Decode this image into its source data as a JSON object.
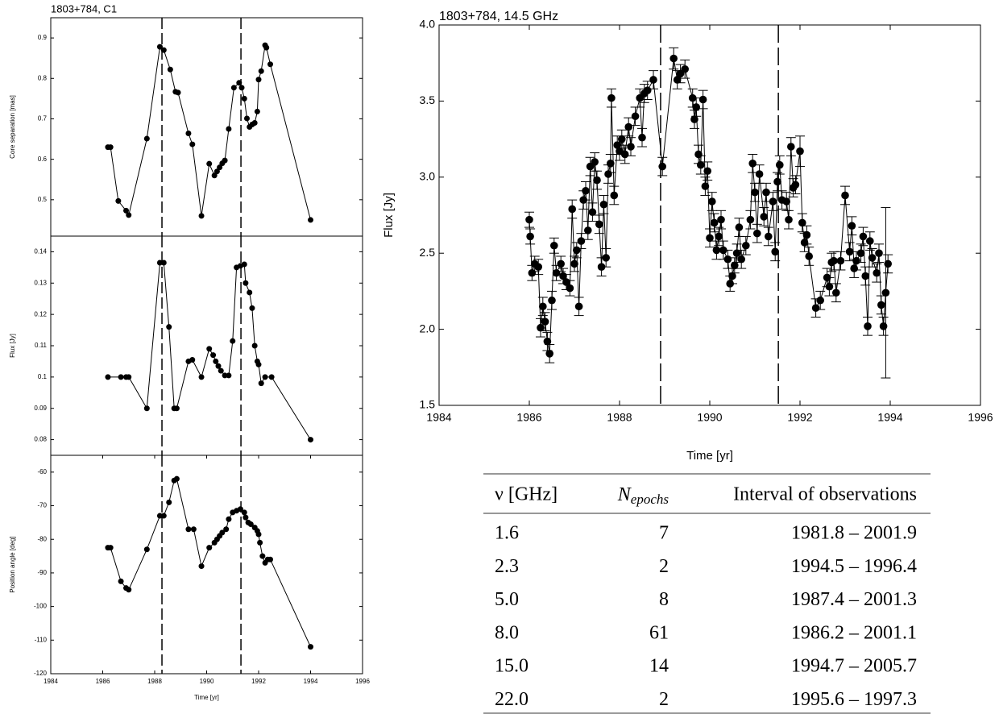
{
  "chart_data": [
    {
      "type": "line",
      "title": "1803+784, C1",
      "ylabel": "Core separation [mas]",
      "color": "#000000",
      "x": [
        1986.2,
        1986.3,
        1986.6,
        1986.9,
        1987.0,
        1987.7,
        1988.2,
        1988.35,
        1988.6,
        1988.8,
        1988.9,
        1989.3,
        1989.45,
        1989.8,
        1990.1,
        1990.3,
        1990.4,
        1990.5,
        1990.6,
        1990.7,
        1990.85,
        1991.05,
        1991.25,
        1991.35,
        1991.45,
        1991.55,
        1991.65,
        1991.75,
        1991.85,
        1991.95,
        1992.0,
        1992.1,
        1992.25,
        1992.3,
        1992.45,
        1994.0
      ],
      "values": [
        0.63,
        0.63,
        0.497,
        0.473,
        0.462,
        0.651,
        0.878,
        0.87,
        0.822,
        0.767,
        0.765,
        0.664,
        0.637,
        0.46,
        0.589,
        0.56,
        0.57,
        0.58,
        0.59,
        0.597,
        0.675,
        0.777,
        0.789,
        0.777,
        0.75,
        0.701,
        0.68,
        0.686,
        0.69,
        0.718,
        0.797,
        0.818,
        0.882,
        0.876,
        0.835,
        0.45
      ],
      "xlim": [
        1984,
        1996
      ],
      "ylim": [
        0.41,
        0.95
      ],
      "yticks": [
        0.5,
        0.6,
        0.7,
        0.8,
        0.9
      ],
      "vlines": [
        1988.28,
        1991.32
      ]
    },
    {
      "type": "line",
      "ylabel": "Flux [Jy]",
      "color": "#000000",
      "x": [
        1986.2,
        1986.7,
        1986.9,
        1987.0,
        1987.7,
        1988.2,
        1988.35,
        1988.55,
        1988.75,
        1988.85,
        1989.3,
        1989.45,
        1989.8,
        1990.1,
        1990.25,
        1990.35,
        1990.45,
        1990.55,
        1990.7,
        1990.85,
        1991.0,
        1991.15,
        1991.3,
        1991.45,
        1991.5,
        1991.65,
        1991.75,
        1991.85,
        1991.95,
        1992.0,
        1992.1,
        1992.25,
        1992.5,
        1994.0
      ],
      "values": [
        0.1,
        0.1,
        0.1,
        0.1,
        0.09,
        0.1365,
        0.1365,
        0.116,
        0.09,
        0.09,
        0.105,
        0.1055,
        0.1,
        0.109,
        0.107,
        0.105,
        0.1035,
        0.102,
        0.1005,
        0.1005,
        0.1115,
        0.135,
        0.1355,
        0.136,
        0.13,
        0.127,
        0.122,
        0.11,
        0.105,
        0.104,
        0.098,
        0.1,
        0.1,
        0.08
      ],
      "xlim": [
        1984,
        1996
      ],
      "ylim": [
        0.075,
        0.145
      ],
      "yticks": [
        0.08,
        0.09,
        0.1,
        0.11,
        0.12,
        0.13,
        0.14
      ],
      "vlines": [
        1988.28,
        1991.32
      ]
    },
    {
      "type": "line",
      "ylabel": "Position angle [deg]",
      "xlabel": "Time [yr]",
      "color": "#000000",
      "x": [
        1986.2,
        1986.3,
        1986.7,
        1986.9,
        1987.0,
        1987.7,
        1988.2,
        1988.35,
        1988.55,
        1988.75,
        1988.85,
        1989.3,
        1989.5,
        1989.8,
        1990.1,
        1990.3,
        1990.4,
        1990.5,
        1990.6,
        1990.75,
        1990.85,
        1991.0,
        1991.15,
        1991.3,
        1991.45,
        1991.5,
        1991.6,
        1991.7,
        1991.85,
        1991.95,
        1992.0,
        1992.05,
        1992.15,
        1992.25,
        1992.35,
        1992.45,
        1994.0
      ],
      "values": [
        -82.5,
        -82.5,
        -92.5,
        -94.5,
        -95,
        -83,
        -73,
        -73,
        -69,
        -62.5,
        -62,
        -77,
        -77,
        -88,
        -82.5,
        -81,
        -80,
        -79,
        -78,
        -77,
        -74,
        -72,
        -71.5,
        -71,
        -72,
        -73.5,
        -75,
        -75.5,
        -76.5,
        -77.5,
        -78.5,
        -81,
        -85,
        -87,
        -86,
        -86,
        -112
      ],
      "xlim": [
        1984,
        1996
      ],
      "ylim": [
        -120,
        -55
      ],
      "yticks": [
        -120,
        -110,
        -100,
        -90,
        -80,
        -70,
        -60
      ],
      "xticks": [
        1984,
        1986,
        1988,
        1990,
        1992,
        1994,
        1996
      ],
      "vlines": [
        1988.28,
        1991.32
      ]
    },
    {
      "type": "line",
      "title": "1803+784, 14.5 GHz",
      "ylabel": "Flux [Jy]",
      "xlabel": "Time [yr]",
      "color": "#000000",
      "x": [
        1986.0,
        1986.02,
        1986.06,
        1986.12,
        1986.2,
        1986.25,
        1986.3,
        1986.35,
        1986.4,
        1986.45,
        1986.5,
        1986.55,
        1986.6,
        1986.7,
        1986.75,
        1986.82,
        1986.9,
        1986.95,
        1987.0,
        1987.05,
        1987.1,
        1987.15,
        1987.2,
        1987.25,
        1987.3,
        1987.35,
        1987.4,
        1987.45,
        1987.5,
        1987.55,
        1987.6,
        1987.65,
        1987.7,
        1987.75,
        1987.8,
        1987.82,
        1987.88,
        1987.95,
        1988.0,
        1988.05,
        1988.12,
        1988.2,
        1988.25,
        1988.35,
        1988.45,
        1988.5,
        1988.55,
        1988.62,
        1988.75,
        1988.95,
        1989.2,
        1989.28,
        1989.35,
        1989.45,
        1989.62,
        1989.66,
        1989.7,
        1989.75,
        1989.8,
        1989.85,
        1989.9,
        1989.95,
        1990.0,
        1990.05,
        1990.1,
        1990.15,
        1990.2,
        1990.25,
        1990.3,
        1990.4,
        1990.45,
        1990.5,
        1990.55,
        1990.6,
        1990.65,
        1990.7,
        1990.8,
        1990.9,
        1990.95,
        1991.0,
        1991.05,
        1991.1,
        1991.2,
        1991.25,
        1991.3,
        1991.4,
        1991.45,
        1991.5,
        1991.55,
        1991.6,
        1991.7,
        1991.75,
        1991.8,
        1991.85,
        1991.9,
        1992.0,
        1992.05,
        1992.1,
        1992.15,
        1992.2,
        1992.35,
        1992.45,
        1992.6,
        1992.65,
        1992.7,
        1992.75,
        1992.8,
        1992.9,
        1993.0,
        1993.1,
        1993.15,
        1993.2,
        1993.25,
        1993.35,
        1993.4,
        1993.45,
        1993.5,
        1993.55,
        1993.6,
        1993.7,
        1993.75,
        1993.8,
        1993.85,
        1993.9,
        1993.95
      ],
      "values": [
        2.72,
        2.61,
        2.37,
        2.43,
        2.41,
        2.01,
        2.15,
        2.05,
        1.92,
        1.84,
        2.19,
        2.55,
        2.37,
        2.43,
        2.35,
        2.31,
        2.27,
        2.79,
        2.43,
        2.52,
        2.15,
        2.58,
        2.85,
        2.91,
        2.65,
        3.07,
        2.77,
        3.1,
        2.98,
        2.69,
        2.41,
        2.82,
        2.47,
        3.02,
        3.09,
        3.52,
        2.88,
        3.21,
        3.17,
        3.25,
        3.15,
        3.33,
        3.2,
        3.4,
        3.52,
        3.26,
        3.55,
        3.57,
        3.64,
        3.07,
        3.78,
        3.64,
        3.68,
        3.71,
        3.52,
        3.38,
        3.46,
        3.15,
        3.08,
        3.51,
        2.94,
        3.04,
        2.6,
        2.84,
        2.7,
        2.52,
        2.61,
        2.72,
        2.52,
        2.46,
        2.3,
        2.35,
        2.42,
        2.5,
        2.67,
        2.46,
        2.55,
        2.72,
        3.09,
        2.9,
        2.63,
        3.02,
        2.74,
        2.9,
        2.61,
        2.84,
        2.51,
        2.97,
        3.08,
        2.85,
        2.84,
        2.72,
        3.2,
        2.93,
        2.95,
        3.17,
        2.7,
        2.57,
        2.62,
        2.48,
        2.14,
        2.19,
        2.34,
        2.28,
        2.44,
        2.45,
        2.24,
        2.45,
        2.88,
        2.51,
        2.68,
        2.4,
        2.45,
        2.5,
        2.61,
        2.35,
        2.02,
        2.58,
        2.47,
        2.37,
        2.5,
        2.16,
        2.02,
        2.24,
        2.43
      ],
      "errors": [
        0.05,
        0.05,
        0.05,
        0.05,
        0.05,
        0.06,
        0.06,
        0.06,
        0.06,
        0.06,
        0.06,
        0.05,
        0.05,
        0.05,
        0.05,
        0.05,
        0.05,
        0.06,
        0.05,
        0.05,
        0.06,
        0.05,
        0.06,
        0.06,
        0.06,
        0.06,
        0.06,
        0.06,
        0.06,
        0.06,
        0.06,
        0.06,
        0.06,
        0.06,
        0.06,
        0.06,
        0.06,
        0.06,
        0.06,
        0.06,
        0.06,
        0.06,
        0.06,
        0.06,
        0.06,
        0.06,
        0.06,
        0.06,
        0.06,
        0.06,
        0.07,
        0.06,
        0.06,
        0.06,
        0.06,
        0.06,
        0.06,
        0.06,
        0.06,
        0.06,
        0.06,
        0.06,
        0.06,
        0.06,
        0.06,
        0.06,
        0.06,
        0.06,
        0.06,
        0.06,
        0.05,
        0.05,
        0.05,
        0.06,
        0.06,
        0.06,
        0.06,
        0.06,
        0.06,
        0.06,
        0.06,
        0.06,
        0.06,
        0.06,
        0.06,
        0.06,
        0.06,
        0.06,
        0.06,
        0.06,
        0.06,
        0.06,
        0.06,
        0.06,
        0.06,
        0.1,
        0.06,
        0.06,
        0.06,
        0.06,
        0.06,
        0.06,
        0.06,
        0.06,
        0.06,
        0.06,
        0.06,
        0.06,
        0.06,
        0.06,
        0.06,
        0.06,
        0.06,
        0.06,
        0.06,
        0.06,
        0.06,
        0.06,
        0.06,
        0.06,
        0.06,
        0.06,
        0.06,
        0.56,
        0.06
      ],
      "xlim": [
        1984,
        1996
      ],
      "ylim": [
        1.5,
        4.0
      ],
      "xticks": [
        1984,
        1986,
        1988,
        1990,
        1992,
        1994,
        1996
      ],
      "yticks": [
        1.5,
        {
          "value": 2.0,
          "label": "2.0"
        },
        2.5,
        {
          "value": 3.0,
          "label": "3.0"
        },
        3.5,
        {
          "value": 4.0,
          "label": "4.0"
        }
      ],
      "vlines": [
        1988.91,
        1991.52
      ]
    }
  ],
  "table": {
    "header": [
      "ν [GHz]",
      {
        "main": "N",
        "sub": "epochs"
      },
      "Interval of observations"
    ],
    "rows": [
      [
        "1.6",
        "7",
        "1981.8 – 2001.9"
      ],
      [
        "2.3",
        "2",
        "1994.5 – 1996.4"
      ],
      [
        "5.0",
        "8",
        "1987.4 – 2001.3"
      ],
      [
        "8.0",
        "61",
        "1986.2 – 2001.1"
      ],
      [
        "15.0",
        "14",
        "1994.7 – 2005.7"
      ],
      [
        "22.0",
        "2",
        "1995.6 – 1997.3"
      ]
    ]
  }
}
